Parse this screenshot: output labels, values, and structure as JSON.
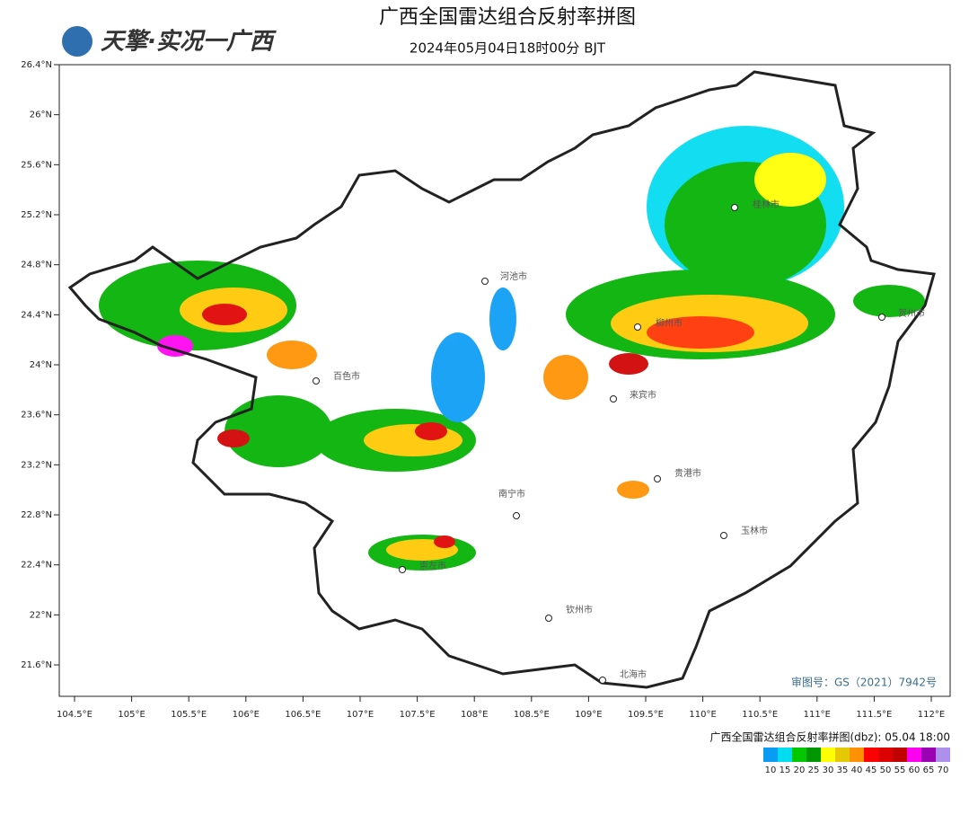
{
  "header": {
    "logo": "天擎·实况一广西",
    "title": "广西全国雷达组合反射率拼图",
    "subtitle": "2024年05月04日18时00分 BJT"
  },
  "map": {
    "lat_ticks": [
      "26.4°N",
      "26°N",
      "25.6°N",
      "25.2°N",
      "24.8°N",
      "24.4°N",
      "24°N",
      "23.6°N",
      "23.2°N",
      "22.8°N",
      "22.4°N",
      "22°N",
      "21.6°N"
    ],
    "lon_ticks": [
      "104.5°E",
      "105°E",
      "105.5°E",
      "106°E",
      "106.5°E",
      "107°E",
      "107.5°E",
      "108°E",
      "108.5°E",
      "109°E",
      "109.5°E",
      "110°E",
      "110.5°E",
      "111°E",
      "111.5°E",
      "112°E"
    ],
    "cities": [
      "河池市",
      "百色市",
      "柳州市",
      "来宾市",
      "桂林市",
      "贺州市",
      "贵港市",
      "南宁市",
      "玉林市",
      "崇左市",
      "钦州市",
      "北海市"
    ],
    "approval": "审图号：GS（2021）7942号"
  },
  "legend": {
    "title": "广西全国雷达组合反射率拼图(dbz): 05.04 18:00",
    "labels": [
      "10",
      "15",
      "20",
      "25",
      "30",
      "35",
      "40",
      "45",
      "50",
      "55",
      "60",
      "65",
      "70"
    ],
    "colors": [
      "#0a9cf5",
      "#00dcf0",
      "#00c800",
      "#009600",
      "#ffff00",
      "#e6c800",
      "#ff9000",
      "#ff0000",
      "#dc0000",
      "#c00000",
      "#ff00f0",
      "#9c00b4",
      "#ae90ec"
    ]
  }
}
